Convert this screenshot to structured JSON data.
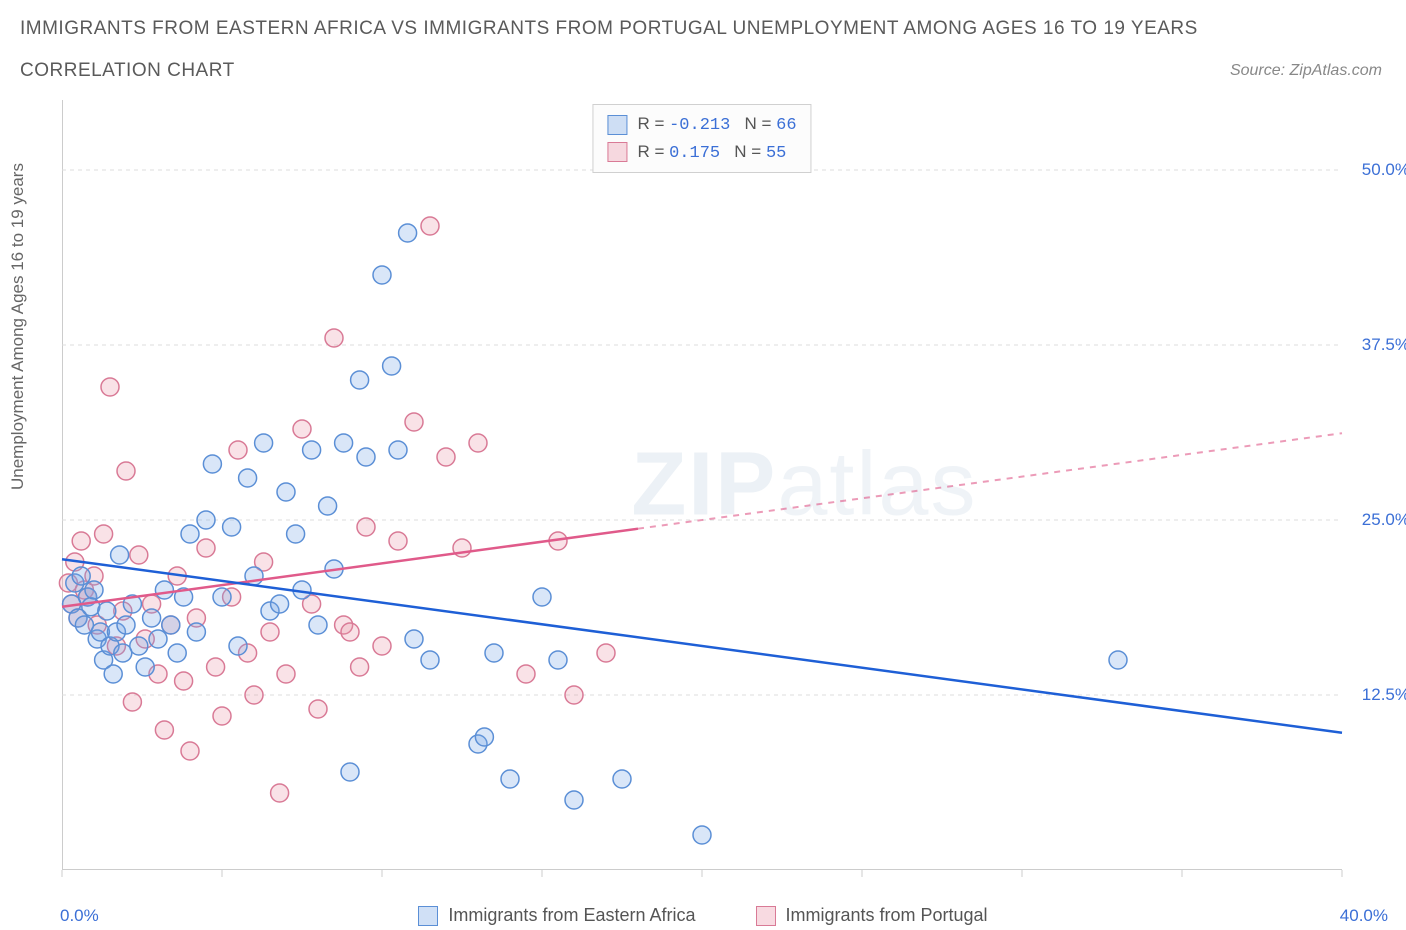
{
  "title": "IMMIGRANTS FROM EASTERN AFRICA VS IMMIGRANTS FROM PORTUGAL UNEMPLOYMENT AMONG AGES 16 TO 19 YEARS",
  "subtitle": "CORRELATION CHART",
  "source": "Source: ZipAtlas.com",
  "yaxis_label": "Unemployment Among Ages 16 to 19 years",
  "watermark_bold": "ZIP",
  "watermark_thin": "atlas",
  "colors": {
    "blue_fill": "rgba(120,165,230,0.28)",
    "blue_stroke": "#5b8fd6",
    "pink_fill": "rgba(235,150,170,0.28)",
    "pink_stroke": "#d97a96",
    "trend_blue": "#1e5fd6",
    "trend_pink": "#e05a8a",
    "grid": "#dddddd",
    "axis_label": "#3b6fd6",
    "text": "#5a5a5a"
  },
  "chart": {
    "type": "scatter",
    "xlim": [
      0,
      40
    ],
    "ylim": [
      0,
      55
    ],
    "x_tick_positions": [
      0,
      5,
      10,
      15,
      20,
      25,
      30,
      35,
      40
    ],
    "y_ticks": [
      12.5,
      25.0,
      37.5,
      50.0
    ],
    "y_tick_labels": [
      "12.5%",
      "25.0%",
      "37.5%",
      "50.0%"
    ],
    "x_origin_label": "0.0%",
    "x_max_label": "40.0%",
    "marker_radius": 9,
    "marker_stroke_width": 1.5,
    "grid_dash": "4,4"
  },
  "legend_stats": {
    "rows": [
      {
        "swatch": "blue",
        "r_label": "R =",
        "r_value": "-0.213",
        "n_label": "N =",
        "n_value": "66"
      },
      {
        "swatch": "pink",
        "r_label": "R =",
        "r_value": " 0.175",
        "n_label": "N =",
        "n_value": "55"
      }
    ]
  },
  "bottom_legend": {
    "items": [
      {
        "swatch": "blue",
        "label": "Immigrants from Eastern Africa"
      },
      {
        "swatch": "pink",
        "label": "Immigrants from Portugal"
      }
    ]
  },
  "trend_lines": {
    "blue": {
      "x1": 0,
      "y1": 22.2,
      "x2": 40,
      "y2": 9.8,
      "solid_until_x": 40
    },
    "pink": {
      "x1": 0,
      "y1": 18.8,
      "x2": 40,
      "y2": 31.2,
      "solid_until_x": 18
    }
  },
  "series": {
    "blue": [
      {
        "x": 0.3,
        "y": 19.0
      },
      {
        "x": 0.4,
        "y": 20.5
      },
      {
        "x": 0.5,
        "y": 18.0
      },
      {
        "x": 0.6,
        "y": 21.0
      },
      {
        "x": 0.7,
        "y": 17.5
      },
      {
        "x": 0.8,
        "y": 19.5
      },
      {
        "x": 0.9,
        "y": 18.8
      },
      {
        "x": 1.0,
        "y": 20.0
      },
      {
        "x": 1.1,
        "y": 16.5
      },
      {
        "x": 1.2,
        "y": 17.0
      },
      {
        "x": 1.3,
        "y": 15.0
      },
      {
        "x": 1.4,
        "y": 18.5
      },
      {
        "x": 1.5,
        "y": 16.0
      },
      {
        "x": 1.6,
        "y": 14.0
      },
      {
        "x": 1.7,
        "y": 17.0
      },
      {
        "x": 1.8,
        "y": 22.5
      },
      {
        "x": 1.9,
        "y": 15.5
      },
      {
        "x": 2.0,
        "y": 17.5
      },
      {
        "x": 2.2,
        "y": 19.0
      },
      {
        "x": 2.4,
        "y": 16.0
      },
      {
        "x": 2.6,
        "y": 14.5
      },
      {
        "x": 2.8,
        "y": 18.0
      },
      {
        "x": 3.0,
        "y": 16.5
      },
      {
        "x": 3.2,
        "y": 20.0
      },
      {
        "x": 3.4,
        "y": 17.5
      },
      {
        "x": 3.6,
        "y": 15.5
      },
      {
        "x": 3.8,
        "y": 19.5
      },
      {
        "x": 4.0,
        "y": 24.0
      },
      {
        "x": 4.2,
        "y": 17.0
      },
      {
        "x": 4.5,
        "y": 25.0
      },
      {
        "x": 4.7,
        "y": 29.0
      },
      {
        "x": 5.0,
        "y": 19.5
      },
      {
        "x": 5.3,
        "y": 24.5
      },
      {
        "x": 5.5,
        "y": 16.0
      },
      {
        "x": 5.8,
        "y": 28.0
      },
      {
        "x": 6.0,
        "y": 21.0
      },
      {
        "x": 6.3,
        "y": 30.5
      },
      {
        "x": 6.5,
        "y": 18.5
      },
      {
        "x": 6.8,
        "y": 19.0
      },
      {
        "x": 7.0,
        "y": 27.0
      },
      {
        "x": 7.3,
        "y": 24.0
      },
      {
        "x": 7.5,
        "y": 20.0
      },
      {
        "x": 7.8,
        "y": 30.0
      },
      {
        "x": 8.0,
        "y": 17.5
      },
      {
        "x": 8.3,
        "y": 26.0
      },
      {
        "x": 8.5,
        "y": 21.5
      },
      {
        "x": 8.8,
        "y": 30.5
      },
      {
        "x": 9.0,
        "y": 7.0
      },
      {
        "x": 9.3,
        "y": 35.0
      },
      {
        "x": 9.5,
        "y": 29.5
      },
      {
        "x": 10.0,
        "y": 42.5
      },
      {
        "x": 10.3,
        "y": 36.0
      },
      {
        "x": 10.5,
        "y": 30.0
      },
      {
        "x": 10.8,
        "y": 45.5
      },
      {
        "x": 11.0,
        "y": 16.5
      },
      {
        "x": 11.5,
        "y": 15.0
      },
      {
        "x": 13.0,
        "y": 9.0
      },
      {
        "x": 13.2,
        "y": 9.5
      },
      {
        "x": 13.5,
        "y": 15.5
      },
      {
        "x": 14.0,
        "y": 6.5
      },
      {
        "x": 15.0,
        "y": 19.5
      },
      {
        "x": 15.5,
        "y": 15.0
      },
      {
        "x": 16.0,
        "y": 5.0
      },
      {
        "x": 17.5,
        "y": 6.5
      },
      {
        "x": 20.0,
        "y": 2.5
      },
      {
        "x": 33.0,
        "y": 15.0
      }
    ],
    "pink": [
      {
        "x": 0.2,
        "y": 20.5
      },
      {
        "x": 0.3,
        "y": 19.0
      },
      {
        "x": 0.4,
        "y": 22.0
      },
      {
        "x": 0.5,
        "y": 18.0
      },
      {
        "x": 0.6,
        "y": 23.5
      },
      {
        "x": 0.7,
        "y": 20.0
      },
      {
        "x": 0.8,
        "y": 19.5
      },
      {
        "x": 1.0,
        "y": 21.0
      },
      {
        "x": 1.1,
        "y": 17.5
      },
      {
        "x": 1.3,
        "y": 24.0
      },
      {
        "x": 1.5,
        "y": 34.5
      },
      {
        "x": 1.7,
        "y": 16.0
      },
      {
        "x": 1.9,
        "y": 18.5
      },
      {
        "x": 2.0,
        "y": 28.5
      },
      {
        "x": 2.2,
        "y": 12.0
      },
      {
        "x": 2.4,
        "y": 22.5
      },
      {
        "x": 2.6,
        "y": 16.5
      },
      {
        "x": 2.8,
        "y": 19.0
      },
      {
        "x": 3.0,
        "y": 14.0
      },
      {
        "x": 3.2,
        "y": 10.0
      },
      {
        "x": 3.4,
        "y": 17.5
      },
      {
        "x": 3.6,
        "y": 21.0
      },
      {
        "x": 3.8,
        "y": 13.5
      },
      {
        "x": 4.0,
        "y": 8.5
      },
      {
        "x": 4.2,
        "y": 18.0
      },
      {
        "x": 4.5,
        "y": 23.0
      },
      {
        "x": 4.8,
        "y": 14.5
      },
      {
        "x": 5.0,
        "y": 11.0
      },
      {
        "x": 5.3,
        "y": 19.5
      },
      {
        "x": 5.5,
        "y": 30.0
      },
      {
        "x": 5.8,
        "y": 15.5
      },
      {
        "x": 6.0,
        "y": 12.5
      },
      {
        "x": 6.3,
        "y": 22.0
      },
      {
        "x": 6.5,
        "y": 17.0
      },
      {
        "x": 6.8,
        "y": 5.5
      },
      {
        "x": 7.0,
        "y": 14.0
      },
      {
        "x": 7.5,
        "y": 31.5
      },
      {
        "x": 7.8,
        "y": 19.0
      },
      {
        "x": 8.0,
        "y": 11.5
      },
      {
        "x": 8.5,
        "y": 38.0
      },
      {
        "x": 8.8,
        "y": 17.5
      },
      {
        "x": 9.0,
        "y": 17.0
      },
      {
        "x": 9.3,
        "y": 14.5
      },
      {
        "x": 9.5,
        "y": 24.5
      },
      {
        "x": 10.0,
        "y": 16.0
      },
      {
        "x": 10.5,
        "y": 23.5
      },
      {
        "x": 11.0,
        "y": 32.0
      },
      {
        "x": 11.5,
        "y": 46.0
      },
      {
        "x": 12.0,
        "y": 29.5
      },
      {
        "x": 12.5,
        "y": 23.0
      },
      {
        "x": 13.0,
        "y": 30.5
      },
      {
        "x": 14.5,
        "y": 14.0
      },
      {
        "x": 15.5,
        "y": 23.5
      },
      {
        "x": 16.0,
        "y": 12.5
      },
      {
        "x": 17.0,
        "y": 15.5
      }
    ]
  }
}
